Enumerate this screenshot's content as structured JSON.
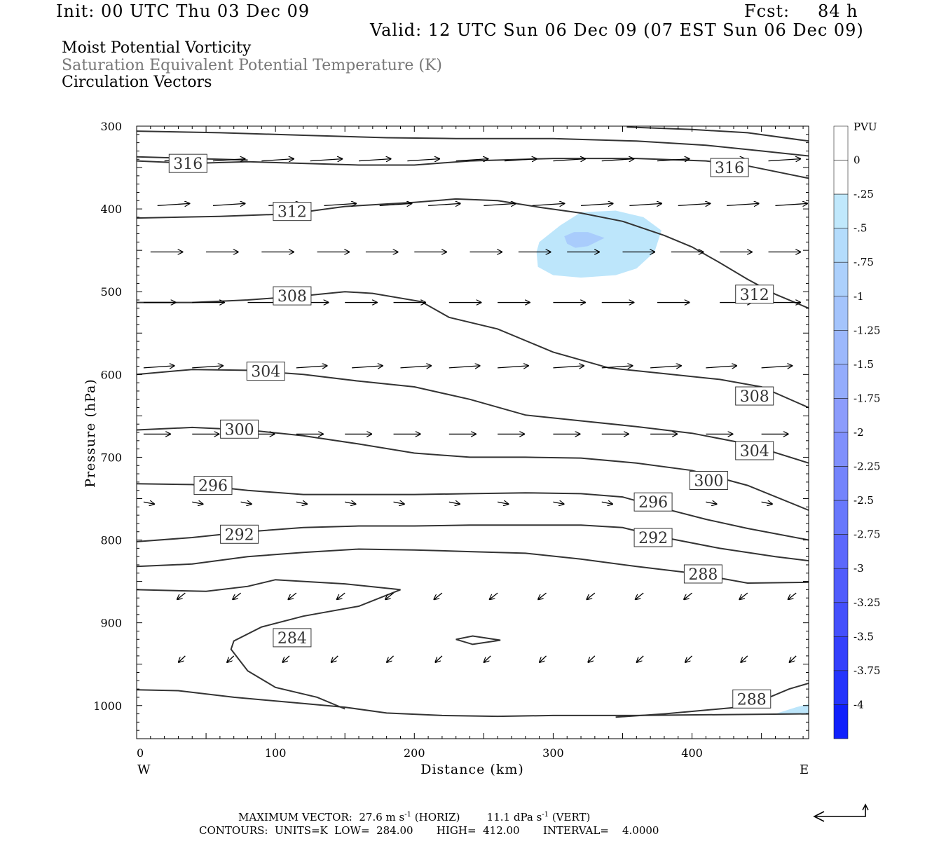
{
  "header": {
    "init": "Init: 00 UTC Thu 03 Dec 09",
    "fcst_label": "Fcst:",
    "fcst_value": "84 h",
    "valid": "Valid: 12 UTC Sun 06 Dec 09 (07 EST Sun 06 Dec 09)",
    "fields": [
      {
        "label": "Moist Potential Vorticity",
        "color": "#000000"
      },
      {
        "label": "Saturation Equivalent Potential Temperature (K)",
        "color": "#777777"
      },
      {
        "label": "Circulation Vectors",
        "color": "#000000"
      }
    ]
  },
  "footer": {
    "max_vector_label": "MAXIMUM VECTOR:",
    "horiz_value": "27.6 m s",
    "horiz_unit_exp": "-1",
    "horiz_tag": "(HORIZ)",
    "vert_value": "11.1 dPa s",
    "vert_unit_exp": "-1",
    "vert_tag": "(VERT)",
    "contours_line": "CONTOURS:  UNITS=K  LOW=  284.00       HIGH=  412.00       INTERVAL=    4.0000"
  },
  "chart_data": {
    "type": "cross-section",
    "title": "",
    "xlabel": "Distance (km)",
    "ylabel": "Pressure (hPa)",
    "xlim": [
      0,
      484
    ],
    "ylim": [
      1040,
      300
    ],
    "x_ticks": [
      0,
      100,
      200,
      300,
      400
    ],
    "y_ticks": [
      300,
      400,
      500,
      600,
      700,
      800,
      900,
      1000
    ],
    "x_end_labels": {
      "left": "W",
      "right": "E"
    },
    "colorbar": {
      "unit": "PVU",
      "labels": [
        "0",
        "-.25",
        "-.5",
        "-.75",
        "-1",
        "-1.25",
        "-1.5",
        "-1.75",
        "-2",
        "-2.25",
        "-2.5",
        "-2.75",
        "-3",
        "-3.25",
        "-3.5",
        "-3.75",
        "-4"
      ],
      "colors": [
        "#ffffff",
        "#ffffff",
        "#c0e8fc",
        "#b4dcfc",
        "#acd0fc",
        "#a4c4fc",
        "#9cb8fc",
        "#94acfc",
        "#8c9cfc",
        "#8090fc",
        "#7484fc",
        "#6878fc",
        "#5c68fc",
        "#505cfc",
        "#4450fc",
        "#3440fc",
        "#2434fc",
        "#1020fc"
      ]
    },
    "pv_shading": [
      {
        "level": "-.25 to -.5",
        "color": "#bde6fb",
        "points": [
          [
            290,
            440
          ],
          [
            305,
            420
          ],
          [
            320,
            404
          ],
          [
            345,
            402
          ],
          [
            365,
            410
          ],
          [
            378,
            426
          ],
          [
            373,
            452
          ],
          [
            360,
            472
          ],
          [
            345,
            480
          ],
          [
            320,
            483
          ],
          [
            300,
            480
          ],
          [
            289,
            470
          ],
          [
            288,
            452
          ]
        ]
      },
      {
        "level": "-.5 to -.75",
        "color": "#a9ccfc",
        "points": [
          [
            308,
            433
          ],
          [
            315,
            428
          ],
          [
            325,
            428
          ],
          [
            337,
            435
          ],
          [
            325,
            445
          ],
          [
            316,
            447
          ],
          [
            310,
            442
          ]
        ]
      },
      {
        "level": "-.25 to -.5",
        "color": "#bde6fb",
        "points": [
          [
            460,
            1010
          ],
          [
            475,
            1002
          ],
          [
            484,
            998
          ],
          [
            484,
            1010
          ]
        ]
      }
    ],
    "contours": [
      {
        "value": 316,
        "label_at": [
          37,
          345
        ],
        "points": [
          [
            0,
            342
          ],
          [
            40,
            345
          ],
          [
            80,
            343
          ],
          [
            120,
            345
          ],
          [
            160,
            347
          ],
          [
            200,
            347
          ],
          [
            240,
            342
          ],
          [
            300,
            339
          ],
          [
            360,
            339
          ],
          [
            410,
            342
          ],
          [
            440,
            348
          ],
          [
            484,
            363
          ]
        ]
      },
      {
        "value": 316,
        "label_at": null,
        "points": [
          [
            0,
            306
          ],
          [
            60,
            308
          ],
          [
            120,
            311
          ],
          [
            180,
            314
          ],
          [
            230,
            315
          ],
          [
            300,
            315
          ],
          [
            360,
            318
          ],
          [
            410,
            323
          ],
          [
            450,
            330
          ],
          [
            484,
            336
          ]
        ]
      },
      {
        "value": 316,
        "label_at": null,
        "points": [
          [
            353,
            301
          ],
          [
            400,
            304
          ],
          [
            440,
            308
          ],
          [
            484,
            318
          ]
        ]
      },
      {
        "value": 316,
        "label_at": [
          427,
          350
        ],
        "points": [
          [
            0,
            337
          ],
          [
            40,
            339
          ],
          [
            80,
            341
          ]
        ]
      },
      {
        "value": 312,
        "label_at": [
          112,
          403
        ],
        "points": [
          [
            0,
            411
          ],
          [
            60,
            409
          ],
          [
            110,
            406
          ],
          [
            150,
            397
          ],
          [
            200,
            392
          ],
          [
            230,
            388
          ],
          [
            260,
            390
          ],
          [
            290,
            398
          ],
          [
            320,
            405
          ],
          [
            350,
            415
          ],
          [
            380,
            432
          ],
          [
            400,
            446
          ],
          [
            420,
            465
          ],
          [
            440,
            485
          ],
          [
            460,
            503
          ],
          [
            484,
            520
          ]
        ]
      },
      {
        "value": 312,
        "label_at": [
          445,
          503
        ],
        "points": []
      },
      {
        "value": 308,
        "label_at": [
          112,
          505
        ],
        "points": [
          [
            0,
            513
          ],
          [
            40,
            513
          ],
          [
            80,
            510
          ],
          [
            120,
            505
          ],
          [
            150,
            500
          ],
          [
            170,
            502
          ],
          [
            205,
            512
          ],
          [
            225,
            531
          ],
          [
            260,
            545
          ],
          [
            300,
            573
          ],
          [
            340,
            592
          ],
          [
            380,
            599
          ],
          [
            420,
            606
          ],
          [
            450,
            615
          ],
          [
            484,
            640
          ]
        ]
      },
      {
        "value": 308,
        "label_at": [
          445,
          626
        ],
        "points": []
      },
      {
        "value": 304,
        "label_at": [
          93,
          596
        ],
        "points": [
          [
            0,
            600
          ],
          [
            40,
            594
          ],
          [
            80,
            595
          ],
          [
            120,
            600
          ],
          [
            160,
            608
          ],
          [
            200,
            615
          ],
          [
            240,
            630
          ],
          [
            280,
            649
          ],
          [
            320,
            656
          ],
          [
            360,
            663
          ],
          [
            400,
            671
          ],
          [
            440,
            684
          ],
          [
            484,
            707
          ]
        ]
      },
      {
        "value": 304,
        "label_at": [
          445,
          692
        ],
        "points": []
      },
      {
        "value": 300,
        "label_at": [
          74,
          666
        ],
        "points": [
          [
            0,
            667
          ],
          [
            40,
            664
          ],
          [
            80,
            667
          ],
          [
            120,
            674
          ],
          [
            160,
            684
          ],
          [
            200,
            695
          ],
          [
            240,
            700
          ],
          [
            280,
            700
          ],
          [
            320,
            701
          ],
          [
            360,
            707
          ],
          [
            400,
            716
          ],
          [
            440,
            734
          ],
          [
            484,
            764
          ]
        ]
      },
      {
        "value": 300,
        "label_at": [
          412,
          728
        ],
        "points": []
      },
      {
        "value": 296,
        "label_at": [
          55,
          734
        ],
        "points": [
          [
            0,
            732
          ],
          [
            40,
            733
          ],
          [
            80,
            740
          ],
          [
            120,
            745
          ],
          [
            160,
            745
          ],
          [
            200,
            745
          ],
          [
            240,
            744
          ],
          [
            280,
            743
          ],
          [
            320,
            744
          ],
          [
            350,
            748
          ],
          [
            380,
            762
          ],
          [
            410,
            775
          ],
          [
            440,
            786
          ],
          [
            484,
            800
          ]
        ]
      },
      {
        "value": 296,
        "label_at": [
          372,
          754
        ],
        "points": []
      },
      {
        "value": 292,
        "label_at": [
          74,
          793
        ],
        "points": [
          [
            0,
            802
          ],
          [
            40,
            797
          ],
          [
            80,
            790
          ],
          [
            120,
            785
          ],
          [
            160,
            783
          ],
          [
            200,
            783
          ],
          [
            240,
            782
          ],
          [
            280,
            782
          ],
          [
            320,
            782
          ],
          [
            350,
            785
          ],
          [
            380,
            797
          ],
          [
            420,
            810
          ],
          [
            460,
            820
          ],
          [
            484,
            825
          ]
        ]
      },
      {
        "value": 292,
        "label_at": [
          372,
          797
        ],
        "points": []
      },
      {
        "value": 288,
        "label_at": [
          408,
          841
        ],
        "points": [
          [
            0,
            832
          ],
          [
            40,
            829
          ],
          [
            80,
            820
          ],
          [
            120,
            815
          ],
          [
            160,
            811
          ],
          [
            200,
            812
          ],
          [
            240,
            814
          ],
          [
            280,
            816
          ],
          [
            320,
            823
          ],
          [
            360,
            832
          ],
          [
            400,
            840
          ],
          [
            440,
            852
          ],
          [
            484,
            851
          ]
        ]
      },
      {
        "value": 288,
        "label_at": [
          443,
          992
        ],
        "points": [
          [
            345,
            1014
          ],
          [
            380,
            1010
          ],
          [
            420,
            1004
          ],
          [
            440,
            1001
          ],
          [
            470,
            980
          ],
          [
            484,
            973
          ]
        ]
      },
      {
        "value": 284,
        "label_at": [
          112,
          918
        ],
        "points": [
          [
            0,
            860
          ],
          [
            50,
            862
          ],
          [
            80,
            856
          ],
          [
            100,
            848
          ],
          [
            120,
            850
          ],
          [
            150,
            853
          ],
          [
            190,
            860
          ],
          [
            160,
            880
          ],
          [
            120,
            892
          ],
          [
            90,
            905
          ],
          [
            70,
            922
          ],
          [
            68,
            932
          ],
          [
            80,
            958
          ],
          [
            100,
            978
          ],
          [
            130,
            990
          ],
          [
            150,
            1004
          ]
        ]
      },
      {
        "value": 284,
        "label_at": null,
        "points": [
          [
            0,
            981
          ],
          [
            30,
            982
          ],
          [
            70,
            990
          ],
          [
            110,
            996
          ],
          [
            150,
            1002
          ],
          [
            180,
            1009
          ],
          [
            220,
            1012
          ],
          [
            260,
            1013
          ],
          [
            300,
            1012
          ],
          [
            360,
            1012
          ],
          [
            420,
            1011
          ],
          [
            484,
            1010
          ]
        ]
      },
      {
        "value": 284,
        "label_at": null,
        "points": [
          [
            230,
            920
          ],
          [
            242,
            916
          ],
          [
            262,
            921
          ],
          [
            242,
            926
          ]
        ]
      }
    ]
  }
}
